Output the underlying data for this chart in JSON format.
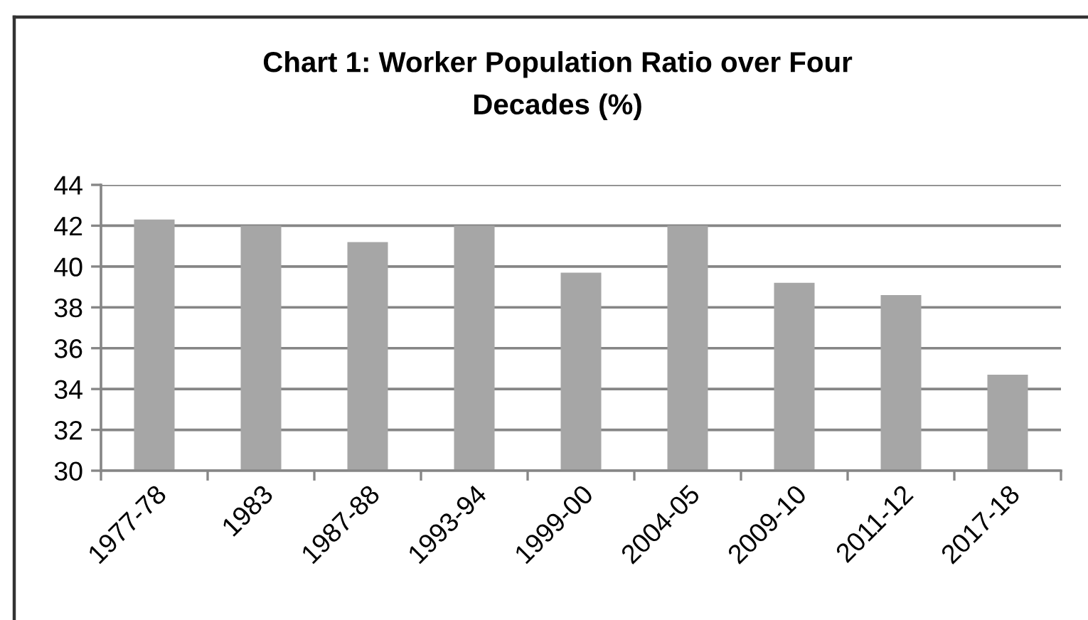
{
  "chart_data": {
    "type": "bar",
    "title": "Chart 1: Worker Population Ratio over Four\nDecades (%)",
    "categories": [
      "1977-78",
      "1983",
      "1987-88",
      "1993-94",
      "1999-00",
      "2004-05",
      "2009-10",
      "2011-12",
      "2017-18"
    ],
    "values": [
      42.3,
      42.0,
      41.2,
      42.0,
      39.7,
      42.0,
      39.2,
      38.6,
      34.7
    ],
    "color": "#a6a6a6",
    "ylim": [
      30,
      44
    ],
    "yticks": [
      30,
      32,
      34,
      36,
      38,
      40,
      42,
      44
    ],
    "grid": "y"
  }
}
